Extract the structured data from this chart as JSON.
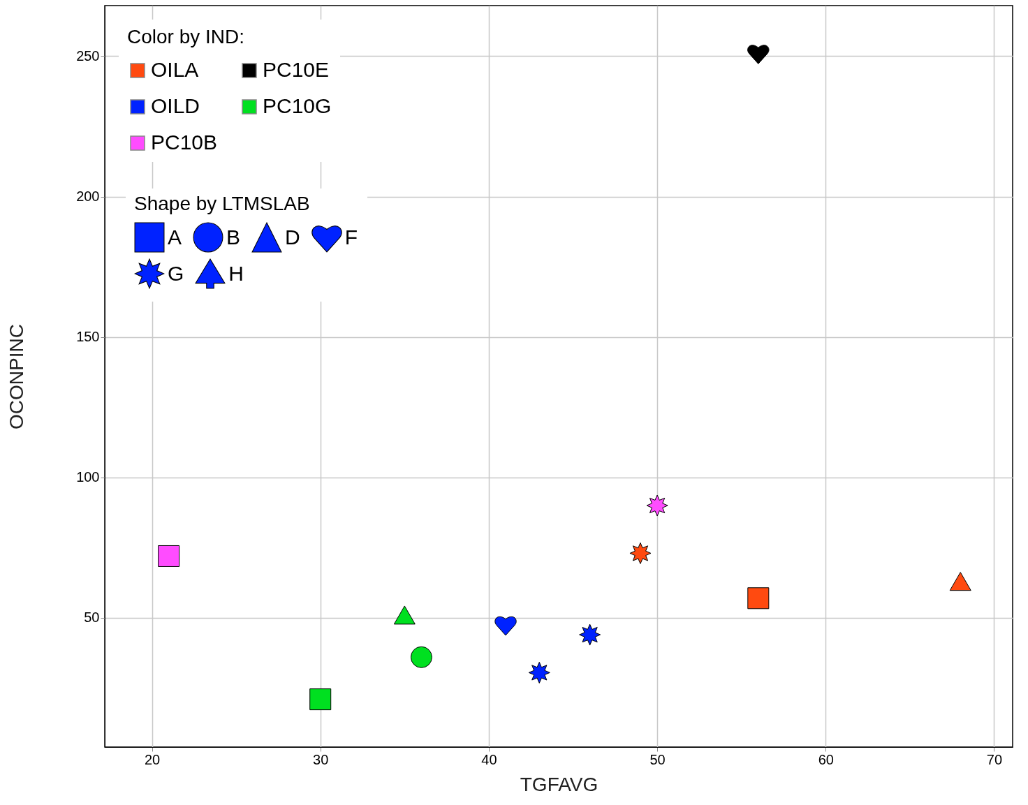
{
  "chart_data": {
    "type": "scatter",
    "xlabel": "TGFAVG",
    "ylabel": "OCONPINC",
    "legend_title": "Color by IND:",
    "legend": "top left",
    "grid": true,
    "annotations": [
      "Shape by LTMSLAB",
      "A",
      "B",
      "D",
      "F",
      "G",
      "H"
    ],
    "xlim": [
      17.2,
      71.1
    ],
    "xticks": [
      20,
      30,
      40,
      50,
      60,
      70
    ],
    "ylim": [
      4,
      268
    ],
    "yticks": [
      50,
      100,
      150,
      200,
      250
    ],
    "series": [
      {
        "name": "OILA",
        "color": "#ff4a10",
        "marker": "square",
        "x": [
          56
        ],
        "values": [
          57
        ]
      },
      {
        "color": "#ff4a10",
        "marker": "star",
        "x": [
          49
        ],
        "values": [
          73
        ]
      },
      {
        "color": "#ff4a10",
        "marker": "triangle",
        "x": [
          68
        ],
        "values": [
          63
        ]
      },
      {
        "name": "OILD",
        "color": "#0022ff",
        "x": [
          41
        ],
        "values": [
          47.5
        ]
      },
      {
        "color": "#0022ff",
        "marker": "star",
        "x": [
          43,
          46
        ],
        "values": [
          30.5,
          44
        ]
      },
      {
        "name": "PC10B",
        "color": "#ff4cff",
        "marker": "square",
        "x": [
          21
        ],
        "values": [
          72
        ]
      },
      {
        "color": "#ff4cff",
        "marker": "star",
        "x": [
          50
        ],
        "values": [
          90
        ]
      },
      {
        "name": "PC10E",
        "color": "#000000",
        "x": [
          56
        ],
        "values": [
          251
        ]
      },
      {
        "name": "PC10G",
        "color": "#00e020",
        "marker": "square",
        "x": [
          30
        ],
        "values": [
          21
        ]
      },
      {
        "color": "#00e020",
        "marker": "circle",
        "x": [
          36
        ],
        "values": [
          36
        ]
      },
      {
        "color": "#00e020",
        "marker": "triangle",
        "x": [
          35
        ],
        "values": [
          51
        ]
      }
    ]
  }
}
